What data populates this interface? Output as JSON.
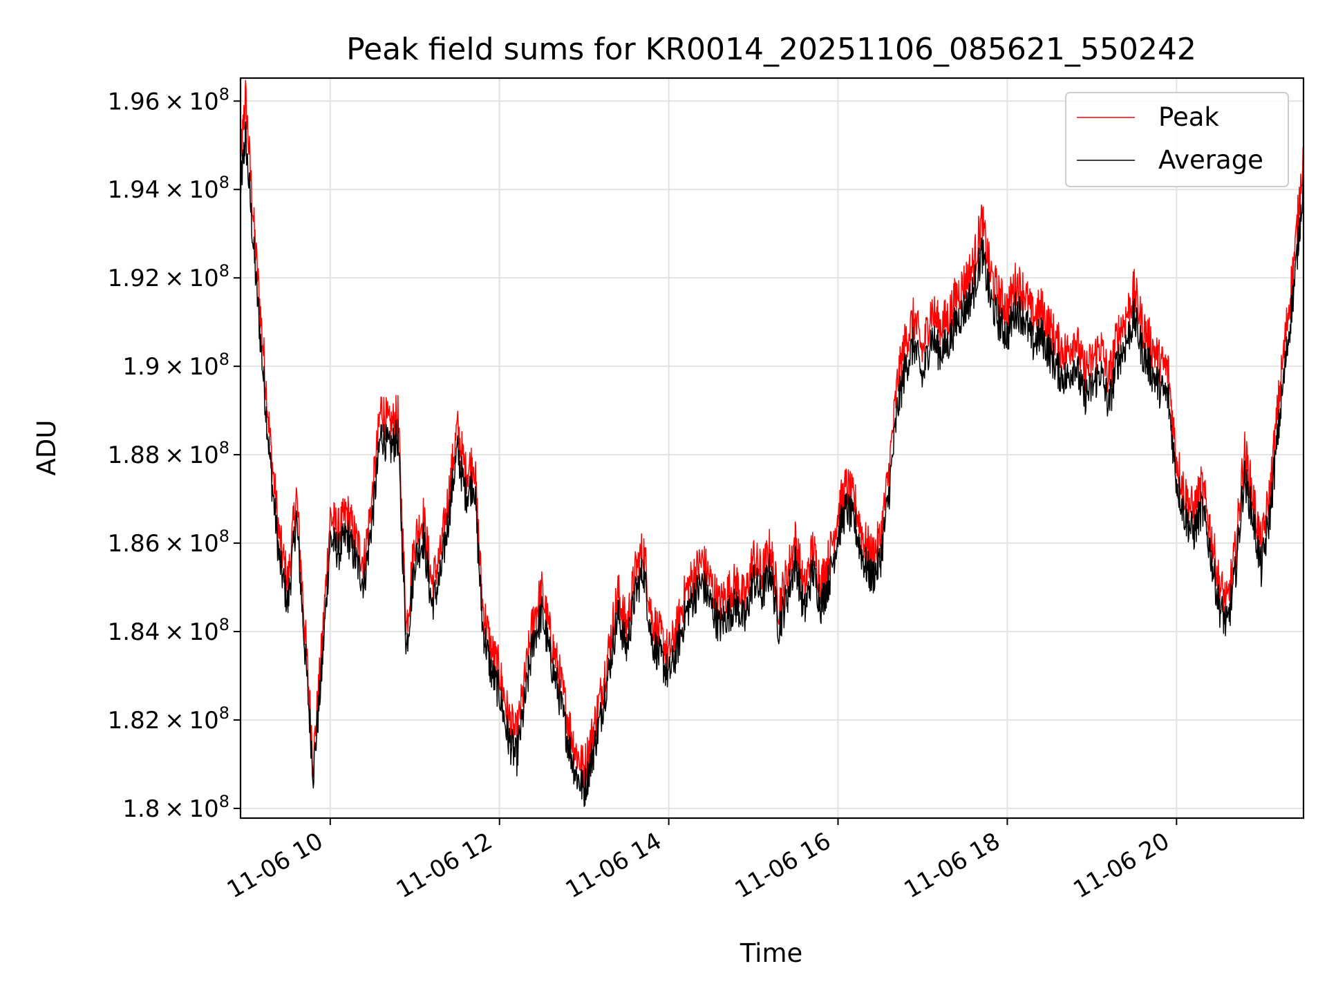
{
  "chart_data": {
    "type": "line",
    "title": "Peak field sums for KR0014_20251106_085621_550242",
    "xlabel": "Time",
    "ylabel": "ADU",
    "grid": true,
    "legend_position": "top-right",
    "x_unit": "hours (2025-11-06, local)",
    "xlim": [
      8.94,
      21.5
    ],
    "ylim": [
      179780000.0,
      196520000.0
    ],
    "x_ticks": [
      10,
      12,
      14,
      16,
      18,
      20
    ],
    "x_tick_labels": [
      "11-06 10",
      "11-06 12",
      "11-06 14",
      "11-06 16",
      "11-06 18",
      "11-06 20"
    ],
    "y_ticks": [
      180000000.0,
      182000000.0,
      184000000.0,
      186000000.0,
      188000000.0,
      190000000.0,
      192000000.0,
      194000000.0,
      196000000.0
    ],
    "y_tick_mantissas": [
      "1.8",
      "1.82",
      "1.84",
      "1.86",
      "1.88",
      "1.9",
      "1.92",
      "1.94",
      "1.96"
    ],
    "y_tick_exponent": "8",
    "y_tick_base": "10",
    "x": [
      8.94,
      9.0,
      9.1,
      9.2,
      9.3,
      9.4,
      9.5,
      9.6,
      9.7,
      9.8,
      9.9,
      10.0,
      10.1,
      10.2,
      10.3,
      10.4,
      10.5,
      10.6,
      10.7,
      10.8,
      10.9,
      11.0,
      11.1,
      11.2,
      11.3,
      11.4,
      11.5,
      11.6,
      11.7,
      11.8,
      11.9,
      12.0,
      12.1,
      12.2,
      12.3,
      12.4,
      12.5,
      12.6,
      12.7,
      12.8,
      12.9,
      13.0,
      13.1,
      13.2,
      13.3,
      13.4,
      13.5,
      13.6,
      13.7,
      13.8,
      13.9,
      14.0,
      14.1,
      14.2,
      14.3,
      14.4,
      14.5,
      14.6,
      14.7,
      14.8,
      14.9,
      15.0,
      15.1,
      15.2,
      15.3,
      15.4,
      15.5,
      15.6,
      15.7,
      15.8,
      15.9,
      16.0,
      16.1,
      16.2,
      16.3,
      16.4,
      16.5,
      16.6,
      16.7,
      16.8,
      16.9,
      17.0,
      17.1,
      17.2,
      17.3,
      17.4,
      17.5,
      17.6,
      17.7,
      17.8,
      17.9,
      18.0,
      18.1,
      18.2,
      18.3,
      18.4,
      18.5,
      18.6,
      18.7,
      18.8,
      18.9,
      19.0,
      19.1,
      19.2,
      19.3,
      19.4,
      19.5,
      19.6,
      19.7,
      19.8,
      19.9,
      20.0,
      20.1,
      20.2,
      20.3,
      20.4,
      20.5,
      20.6,
      20.7,
      20.8,
      20.9,
      21.0,
      21.1,
      21.2,
      21.3,
      21.4,
      21.5
    ],
    "series": [
      {
        "name": "Peak",
        "color": "#ff0000",
        "values": [
          194500000.0,
          196000000.0,
          193000000.0,
          190500000.0,
          188000000.0,
          186000000.0,
          185000000.0,
          187000000.0,
          184000000.0,
          181000000.0,
          183500000.0,
          186500000.0,
          186200000.0,
          186600000.0,
          186000000.0,
          185500000.0,
          187000000.0,
          189000000.0,
          188500000.0,
          188800000.0,
          184000000.0,
          186000000.0,
          186500000.0,
          185000000.0,
          185600000.0,
          187000000.0,
          188500000.0,
          187500000.0,
          187800000.0,
          184500000.0,
          183500000.0,
          183000000.0,
          182000000.0,
          181500000.0,
          182800000.0,
          184200000.0,
          184800000.0,
          183800000.0,
          183000000.0,
          182000000.0,
          181200000.0,
          180800000.0,
          181600000.0,
          182500000.0,
          183600000.0,
          184800000.0,
          184000000.0,
          185200000.0,
          185800000.0,
          184200000.0,
          183800000.0,
          183400000.0,
          184000000.0,
          184800000.0,
          185200000.0,
          185500000.0,
          185000000.0,
          184500000.0,
          184800000.0,
          185000000.0,
          184600000.0,
          185600000.0,
          185200000.0,
          185800000.0,
          184500000.0,
          185200000.0,
          186000000.0,
          184800000.0,
          185800000.0,
          185000000.0,
          185600000.0,
          186600000.0,
          187200000.0,
          186800000.0,
          186000000.0,
          185600000.0,
          186000000.0,
          187500000.0,
          189500000.0,
          190500000.0,
          191000000.0,
          190200000.0,
          191200000.0,
          190800000.0,
          191000000.0,
          191500000.0,
          191800000.0,
          192200000.0,
          193200000.0,
          192000000.0,
          191500000.0,
          191200000.0,
          191800000.0,
          191600000.0,
          191000000.0,
          191200000.0,
          190800000.0,
          190400000.0,
          190200000.0,
          190600000.0,
          189800000.0,
          190000000.0,
          190400000.0,
          189600000.0,
          190600000.0,
          191000000.0,
          191600000.0,
          190800000.0,
          190400000.0,
          190000000.0,
          189800000.0,
          187800000.0,
          187000000.0,
          186600000.0,
          187200000.0,
          186200000.0,
          185000000.0,
          184500000.0,
          185800000.0,
          188000000.0,
          187000000.0,
          185800000.0,
          187000000.0,
          189000000.0,
          190800000.0,
          192500000.0,
          194800000.0
        ]
      },
      {
        "name": "Average",
        "color": "#000000",
        "values": [
          194000000.0,
          195200000.0,
          192500000.0,
          190000000.0,
          187600000.0,
          185600000.0,
          184600000.0,
          186600000.0,
          183600000.0,
          180800000.0,
          183100000.0,
          186100000.0,
          185800000.0,
          186200000.0,
          185600000.0,
          185100000.0,
          186600000.0,
          188500000.0,
          188100000.0,
          188400000.0,
          183600000.0,
          185600000.0,
          186100000.0,
          184600000.0,
          185200000.0,
          186600000.0,
          188100000.0,
          187100000.0,
          187400000.0,
          184100000.0,
          183100000.0,
          182600000.0,
          181600000.0,
          181100000.0,
          182400000.0,
          183800000.0,
          184400000.0,
          183400000.0,
          182600000.0,
          181600000.0,
          180800000.0,
          180400000.0,
          181200000.0,
          182100000.0,
          183200000.0,
          184400000.0,
          183600000.0,
          184800000.0,
          185400000.0,
          183800000.0,
          183400000.0,
          183000000.0,
          183600000.0,
          184400000.0,
          184800000.0,
          185100000.0,
          184600000.0,
          184100000.0,
          184400000.0,
          184600000.0,
          184200000.0,
          185200000.0,
          184800000.0,
          185400000.0,
          184100000.0,
          184800000.0,
          185600000.0,
          184400000.0,
          185400000.0,
          184600000.0,
          185200000.0,
          186200000.0,
          186800000.0,
          186400000.0,
          185600000.0,
          185200000.0,
          185600000.0,
          187100000.0,
          189000000.0,
          190000000.0,
          190500000.0,
          189700000.0,
          190700000.0,
          190300000.0,
          190500000.0,
          191000000.0,
          191300000.0,
          191700000.0,
          192600000.0,
          191500000.0,
          191000000.0,
          190700000.0,
          191300000.0,
          191100000.0,
          190500000.0,
          190700000.0,
          190300000.0,
          189900000.0,
          189700000.0,
          190100000.0,
          189300000.0,
          189500000.0,
          189900000.0,
          189100000.0,
          190100000.0,
          190500000.0,
          191100000.0,
          190300000.0,
          189900000.0,
          189500000.0,
          189300000.0,
          187400000.0,
          186600000.0,
          186200000.0,
          186800000.0,
          185800000.0,
          184600000.0,
          184100000.0,
          185400000.0,
          187500000.0,
          186600000.0,
          185400000.0,
          186600000.0,
          188500000.0,
          190300000.0,
          192000000.0,
          194200000.0
        ]
      }
    ]
  }
}
